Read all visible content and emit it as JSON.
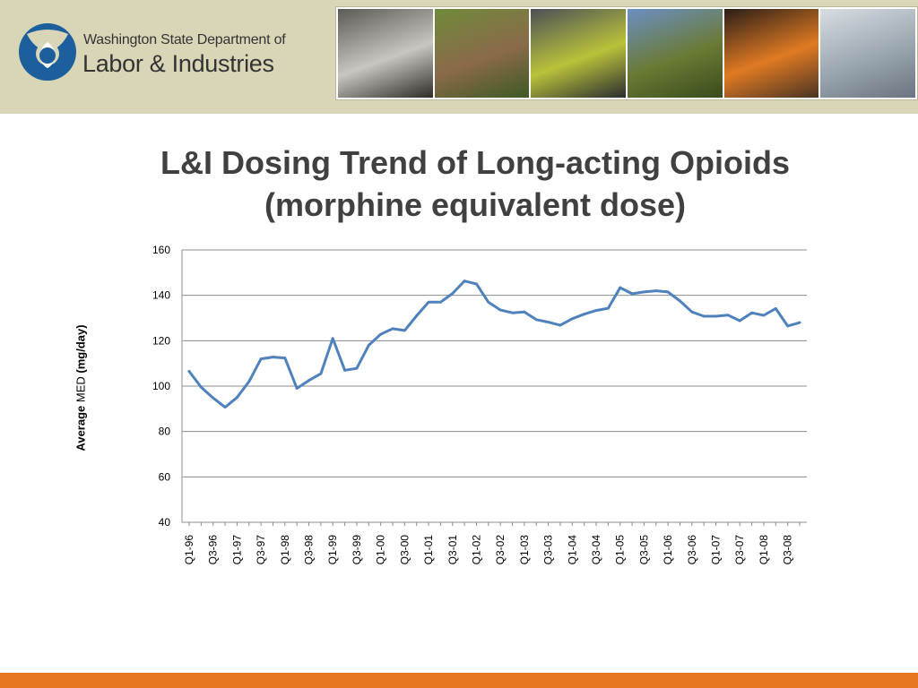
{
  "header": {
    "logo_line1": "Washington State Department of",
    "logo_line2": "Labor & Industries",
    "photos": [
      {
        "name": "photo-worker-respirator",
        "colors": [
          "#5b5a55",
          "#c8c6c0",
          "#2f2c28"
        ]
      },
      {
        "name": "photo-fruit-picker",
        "colors": [
          "#6f8a3a",
          "#8a6a4a",
          "#3d5a24"
        ]
      },
      {
        "name": "photo-construction-worker",
        "colors": [
          "#4b4f57",
          "#b9c23a",
          "#2a2c30"
        ]
      },
      {
        "name": "photo-farm-workers",
        "colors": [
          "#6b8fc4",
          "#6a7a34",
          "#3a4a1c"
        ]
      },
      {
        "name": "photo-foundry-worker",
        "colors": [
          "#2a1e18",
          "#e07a22",
          "#4a3424"
        ]
      },
      {
        "name": "photo-lab-worker",
        "colors": [
          "#d8dde2",
          "#9aa6b0",
          "#6a7480"
        ]
      }
    ]
  },
  "title": {
    "line1": "L&I Dosing Trend of Long-acting Opioids",
    "line2": "(morphine equivalent dose)"
  },
  "chart_data": {
    "type": "line",
    "title": "L&I Dosing Trend of Long-acting Opioids (morphine equivalent dose)",
    "ylabel": "Average MED (mg/day)",
    "ylabel_parts": {
      "a": "Average ",
      "b": "MED",
      "c": "  (mg/day)"
    },
    "ylim": [
      40,
      160
    ],
    "yticks": [
      40,
      60,
      80,
      100,
      120,
      140,
      160
    ],
    "grid": true,
    "line_color": "#4f81bd",
    "x": [
      "Q1-96",
      "Q2-96",
      "Q3-96",
      "Q4-96",
      "Q1-97",
      "Q2-97",
      "Q3-97",
      "Q4-97",
      "Q1-98",
      "Q2-98",
      "Q3-98",
      "Q4-98",
      "Q1-99",
      "Q2-99",
      "Q3-99",
      "Q4-99",
      "Q1-00",
      "Q2-00",
      "Q3-00",
      "Q4-00",
      "Q1-01",
      "Q2-01",
      "Q3-01",
      "Q4-01",
      "Q1-02",
      "Q2-02",
      "Q3-02",
      "Q4-02",
      "Q1-03",
      "Q2-03",
      "Q3-03",
      "Q4-03",
      "Q1-04",
      "Q2-04",
      "Q3-04",
      "Q4-04",
      "Q1-05",
      "Q2-05",
      "Q3-05",
      "Q4-05",
      "Q1-06",
      "Q2-06",
      "Q3-06",
      "Q4-06",
      "Q1-07",
      "Q2-07",
      "Q3-07",
      "Q4-07",
      "Q1-08",
      "Q2-08",
      "Q3-08",
      "Q4-08"
    ],
    "xtick_labels": [
      "Q1-96",
      "Q3-96",
      "Q1-97",
      "Q3-97",
      "Q1-98",
      "Q3-98",
      "Q1-99",
      "Q3-99",
      "Q1-00",
      "Q3-00",
      "Q1-01",
      "Q3-01",
      "Q1-02",
      "Q3-02",
      "Q1-03",
      "Q3-03",
      "Q1-04",
      "Q3-04",
      "Q1-05",
      "Q3-05",
      "Q1-06",
      "Q3-06",
      "Q1-07",
      "Q3-07",
      "Q1-08",
      "Q3-08"
    ],
    "values": [
      106.5,
      99.5,
      94.8,
      90.7,
      95,
      102,
      112,
      112.8,
      112.4,
      99,
      102.5,
      105.5,
      121,
      107,
      107.8,
      118,
      122.8,
      125.3,
      124.5,
      131,
      137,
      137,
      140.8,
      146.3,
      145,
      137,
      133.5,
      132.3,
      132.7,
      129.3,
      128.2,
      126.8,
      129.7,
      131.7,
      133.3,
      134.3,
      143.4,
      140.7,
      141.5,
      142,
      141.5,
      137.5,
      132.7,
      130.8,
      130.8,
      131.3,
      128.8,
      132.3,
      131.2,
      134.2,
      126.5,
      128
    ]
  },
  "footer": {
    "bar_color": "#e87722"
  }
}
